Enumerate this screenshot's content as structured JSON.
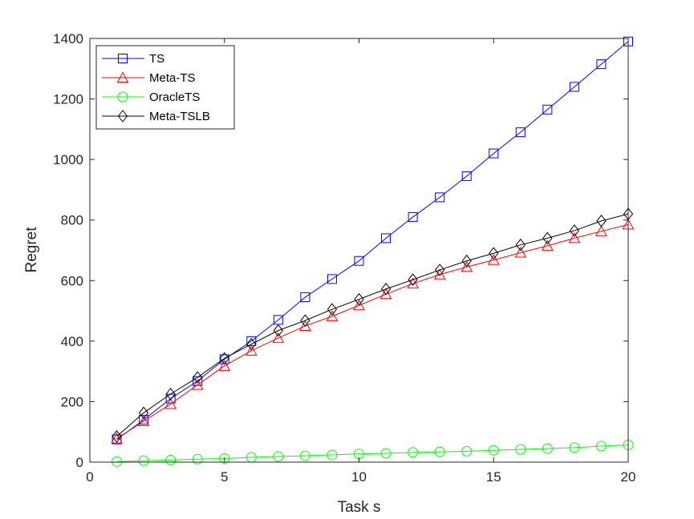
{
  "chart_data": {
    "type": "line",
    "title": "",
    "xlabel": "Task s",
    "ylabel": "Regret",
    "xlim": [
      0,
      20
    ],
    "ylim": [
      0,
      1400
    ],
    "xticks": [
      0,
      5,
      10,
      15,
      20
    ],
    "xtick_labels": [
      "0",
      "5",
      "10",
      "15",
      "20"
    ],
    "yticks": [
      0,
      200,
      400,
      600,
      800,
      1000,
      1200,
      1400
    ],
    "ytick_labels": [
      "0",
      "200",
      "400",
      "600",
      "800",
      "1000",
      "1200",
      "1400"
    ],
    "grid": false,
    "legend_position": "top-left",
    "x": [
      1,
      2,
      3,
      4,
      5,
      6,
      7,
      8,
      9,
      10,
      11,
      12,
      13,
      14,
      15,
      16,
      17,
      18,
      19,
      20
    ],
    "series": [
      {
        "name": "TS",
        "color": "#0000ff",
        "marker": "square",
        "values": [
          75,
          140,
          210,
          268,
          340,
          400,
          470,
          545,
          605,
          665,
          740,
          810,
          875,
          945,
          1020,
          1090,
          1165,
          1240,
          1315,
          1390
        ]
      },
      {
        "name": "Meta-TS",
        "color": "#ff0000",
        "marker": "triangle",
        "values": [
          78,
          135,
          192,
          255,
          318,
          368,
          410,
          450,
          482,
          518,
          555,
          590,
          620,
          645,
          668,
          692,
          715,
          740,
          763,
          785
        ]
      },
      {
        "name": "OracleTS",
        "color": "#00ff00",
        "marker": "circle",
        "values": [
          2,
          5,
          7,
          10,
          12,
          16,
          19,
          21,
          24,
          27,
          29,
          32,
          34,
          36,
          39,
          42,
          45,
          48,
          53,
          57
        ]
      },
      {
        "name": "Meta-TSLB",
        "color": "#000000",
        "marker": "diamond",
        "values": [
          85,
          163,
          225,
          280,
          343,
          390,
          435,
          468,
          505,
          538,
          572,
          603,
          635,
          665,
          690,
          718,
          740,
          765,
          797,
          820
        ]
      }
    ]
  }
}
